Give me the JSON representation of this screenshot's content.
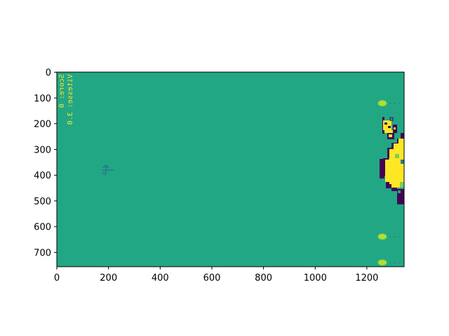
{
  "plot": {
    "x_ticks": [
      "0",
      "200",
      "400",
      "600",
      "800",
      "1000",
      "1200"
    ],
    "y_ticks": [
      "0",
      "100",
      "200",
      "300",
      "400",
      "500",
      "600",
      "700"
    ],
    "x_range": [
      0,
      1344
    ],
    "y_range": [
      756,
      0
    ]
  },
  "colors": {
    "background": "#22a785",
    "light": "#fde725",
    "dark": "#440154",
    "mid_green": "#7ad151",
    "teal": "#2a788e"
  },
  "game": {
    "hud_line_1": "Score: 0",
    "hud_line_2": "Vitesse: 3.0",
    "hud_mirrored": true,
    "player_icon": "anchor-arrow-icon",
    "balls": [
      {
        "x": 1260,
        "y": 120
      },
      {
        "x": 1260,
        "y": 635
      },
      {
        "x": 1260,
        "y": 735
      }
    ],
    "obstacle": "pixel-blob-icon"
  }
}
